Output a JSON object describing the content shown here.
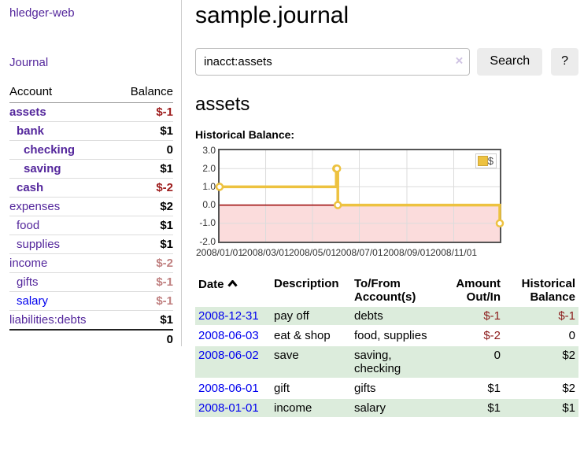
{
  "sidebar": {
    "brand": "hledger-web",
    "journal_label": "Journal",
    "accounts_table": {
      "headers": {
        "account": "Account",
        "balance": "Balance"
      },
      "rows": [
        {
          "name": "assets",
          "depth": 0,
          "bold": true,
          "balance": "$-1",
          "neg": "strong"
        },
        {
          "name": "bank",
          "depth": 1,
          "bold": true,
          "balance": "$1"
        },
        {
          "name": "checking",
          "depth": 2,
          "bold": true,
          "balance": "0"
        },
        {
          "name": "saving",
          "depth": 2,
          "bold": true,
          "balance": "$1"
        },
        {
          "name": "cash",
          "depth": 1,
          "bold": true,
          "balance": "$-2",
          "neg": "strong"
        },
        {
          "name": "expenses",
          "depth": 0,
          "bold": false,
          "balance": "$2"
        },
        {
          "name": "food",
          "depth": 1,
          "bold": false,
          "balance": "$1"
        },
        {
          "name": "supplies",
          "depth": 1,
          "bold": false,
          "balance": "$1"
        },
        {
          "name": "income",
          "depth": 0,
          "bold": false,
          "balance": "$-2",
          "neg": "soft"
        },
        {
          "name": "gifts",
          "depth": 1,
          "bold": false,
          "balance": "$-1",
          "neg": "soft"
        },
        {
          "name": "salary",
          "depth": 1,
          "bold": false,
          "balance": "$-1",
          "neg": "soft",
          "link": "blue"
        },
        {
          "name": "liabilities:debts",
          "depth": 0,
          "bold": false,
          "balance": "$1"
        }
      ],
      "total": "0"
    }
  },
  "header": {
    "title": "sample.journal"
  },
  "search": {
    "value": "inacct:assets",
    "clear_icon": "×",
    "button_label": "Search",
    "help_label": "?"
  },
  "account_page": {
    "title": "assets",
    "chart_label": "Historical Balance:"
  },
  "chart_data": {
    "type": "line",
    "title": "Historical Balance",
    "series": [
      {
        "name": "$",
        "color": "#edc240",
        "steps": true,
        "points": [
          {
            "date": "2008-01-01",
            "value": 1
          },
          {
            "date": "2008-06-01",
            "value": 2
          },
          {
            "date": "2008-06-02",
            "value": 2
          },
          {
            "date": "2008-06-03",
            "value": 0
          },
          {
            "date": "2008-12-31",
            "value": -1
          }
        ]
      }
    ],
    "x_range": [
      "2008-01-01",
      "2008-12-31"
    ],
    "x_tick_dates": [
      "2008-01-01",
      "2008-03-01",
      "2008-05-01",
      "2008-07-01",
      "2008-09-01",
      "2008-11-01"
    ],
    "x_ticks": [
      "2008/01/01",
      "2008/03/01",
      "2008/05/01",
      "2008/07/01",
      "2008/09/01",
      "2008/11/01"
    ],
    "y_ticks": [
      3.0,
      2.0,
      1.0,
      0.0,
      -1.0,
      -2.0
    ],
    "y_tick_labels": [
      "3.0",
      "2.0",
      "1.0",
      "0.0",
      "-1.0",
      "-2.0"
    ],
    "ylim": [
      -2,
      3
    ],
    "grid": true,
    "legend_position": "top-right",
    "colors": {
      "series": "#edc240",
      "marker_fill": "#ffffff",
      "gridline": "#dcdcdc",
      "border": "#545454",
      "zero_line": "#990000",
      "negative_fill": "#fbdcdc"
    }
  },
  "register_table": {
    "headers": {
      "date": "Date",
      "sort_icon": "chevron-up",
      "description": "Description",
      "accounts": "To/From Account(s)",
      "amount": "Amount Out/In",
      "balance": "Historical Balance"
    },
    "rows": [
      {
        "date": "2008-12-31",
        "description": "pay off",
        "accounts": "debts",
        "amount": "$-1",
        "balance": "$-1",
        "amount_neg": true,
        "balance_neg": true,
        "shade": true
      },
      {
        "date": "2008-06-03",
        "description": "eat & shop",
        "accounts": "food, supplies",
        "amount": "$-2",
        "balance": "0",
        "amount_neg": true,
        "balance_neg": false,
        "shade": false
      },
      {
        "date": "2008-06-02",
        "description": "save",
        "accounts": "saving, checking",
        "amount": "0",
        "balance": "$2",
        "amount_neg": false,
        "balance_neg": false,
        "shade": true
      },
      {
        "date": "2008-06-01",
        "description": "gift",
        "accounts": "gifts",
        "amount": "$1",
        "balance": "$2",
        "amount_neg": false,
        "balance_neg": false,
        "shade": false
      },
      {
        "date": "2008-01-01",
        "description": "income",
        "accounts": "salary",
        "amount": "$1",
        "balance": "$1",
        "amount_neg": false,
        "balance_neg": false,
        "shade": true
      }
    ]
  },
  "colors": {
    "link_purple": "#54279c",
    "link_blue": "#0000ee",
    "negative_strong": "#9d1b1b",
    "negative_soft": "#c08080",
    "register_negative": "#8b1a1a",
    "row_stripe_green": "#dcecdc"
  }
}
